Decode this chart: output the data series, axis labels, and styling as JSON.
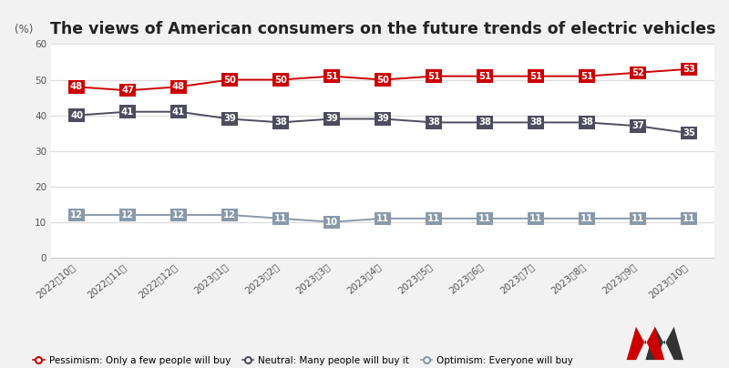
{
  "title": "The views of American consumers on the future trends of electric vehicles",
  "ylabel": "(%)",
  "categories": [
    "2022年10月",
    "2022年11月",
    "2022年12月",
    "2023年1月",
    "2023年2月",
    "2023年3月",
    "2023年4月",
    "2023年5月",
    "2023年6月",
    "2023年7月",
    "2023年8月",
    "2023年9月",
    "2023年10月"
  ],
  "pessimism": [
    48,
    47,
    48,
    50,
    50,
    51,
    50,
    51,
    51,
    51,
    51,
    52,
    53
  ],
  "neutral": [
    40,
    41,
    41,
    39,
    38,
    39,
    39,
    38,
    38,
    38,
    38,
    37,
    35
  ],
  "optimism": [
    12,
    12,
    12,
    12,
    11,
    10,
    11,
    11,
    11,
    11,
    11,
    11,
    11
  ],
  "pessimism_color": "#cc0000",
  "neutral_color": "#4d4d5e",
  "optimism_color": "#8899aa",
  "background_color": "#f2f2f2",
  "plot_bg_color": "#ffffff",
  "ylim": [
    0,
    60
  ],
  "yticks": [
    0,
    10,
    20,
    30,
    40,
    50,
    60
  ],
  "legend_pessimism": "Pessimism: Only a few people will buy",
  "legend_neutral": "Neutral: Many people will buy it",
  "legend_optimism": "Optimism: Everyone will buy",
  "title_fontsize": 12.5,
  "tick_fontsize": 7.5
}
